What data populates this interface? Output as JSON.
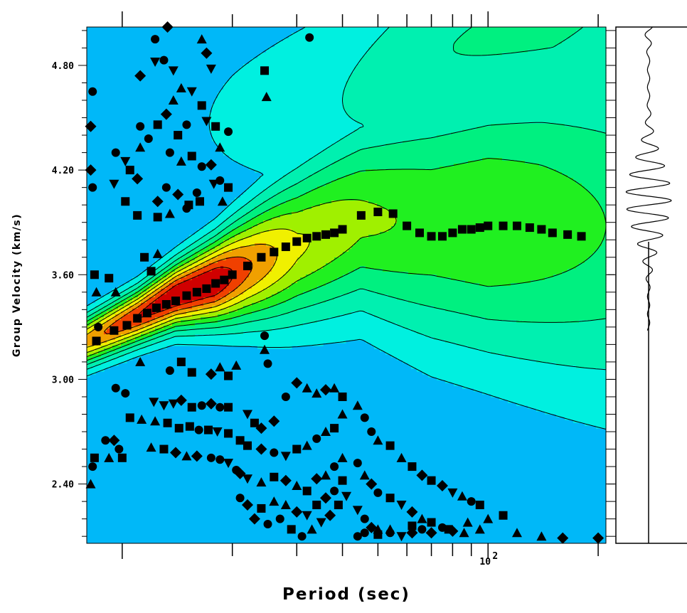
{
  "chart_data": {
    "type": "heatmap",
    "xlabel": "Period (sec)",
    "ylabel": "Group Velocity (km/s)",
    "x_scale": "log",
    "xlim": [
      8,
      210
    ],
    "ylim": [
      2.06,
      5.02
    ],
    "x_tick_labels": [
      {
        "value": 100,
        "base": "10",
        "exponent": "2"
      }
    ],
    "x_minor_ticks": [
      10,
      20,
      30,
      40,
      50,
      60,
      70,
      80,
      90,
      100,
      200
    ],
    "y_tick_labels": [
      "2.40",
      "3.00",
      "3.60",
      "4.20",
      "4.80"
    ],
    "y_ticks": [
      2.4,
      3.0,
      3.6,
      4.2,
      4.8
    ],
    "colormap": [
      "#00b8f8",
      "#00f0e0",
      "#00f0b0",
      "#00f080",
      "#20f020",
      "#a0f000",
      "#f0f000",
      "#f0a000",
      "#f04000",
      "#d00000"
    ],
    "background_color": "#00b8f8",
    "energy_ridges": [
      {
        "period": [
          8,
          11,
          14,
          18,
          22,
          30,
          45,
          70,
          100,
          140,
          210
        ],
        "velocity": [
          3.22,
          3.36,
          3.48,
          3.56,
          3.64,
          3.76,
          3.92,
          3.9,
          3.9,
          3.9,
          3.88
        ],
        "sigma": [
          0.1,
          0.11,
          0.13,
          0.17,
          0.22,
          0.3,
          0.38,
          0.5,
          0.55,
          0.62,
          0.7
        ],
        "amplitude": [
          0.75,
          0.9,
          1.0,
          1.0,
          0.82,
          0.62,
          0.52,
          0.48,
          0.5,
          0.46,
          0.4
        ]
      },
      {
        "period": [
          8,
          12,
          20,
          40,
          80,
          150,
          210
        ],
        "velocity": [
          4.3,
          4.4,
          4.5,
          4.6,
          4.9,
          5.1,
          5.2
        ],
        "sigma": [
          0.3,
          0.35,
          0.4,
          0.45,
          0.5,
          0.55,
          0.6
        ],
        "amplitude": [
          0.0,
          0.05,
          0.12,
          0.2,
          0.3,
          0.32,
          0.3
        ]
      }
    ],
    "contour_levels": [
      0.1,
      0.2,
      0.3,
      0.4,
      0.5,
      0.6,
      0.7,
      0.8,
      0.9
    ],
    "dispersion_picks": {
      "marker": "square",
      "period": [
        9.5,
        10.3,
        11,
        11.7,
        12.4,
        13.2,
        14,
        15,
        16,
        17,
        18,
        19,
        20,
        22,
        24,
        26,
        28,
        30,
        32,
        34,
        36,
        38,
        40,
        45,
        50,
        55,
        60,
        65,
        70,
        75,
        80,
        85,
        90,
        95,
        100,
        110,
        120,
        130,
        140,
        150,
        165,
        180
      ],
      "velocity": [
        3.28,
        3.31,
        3.35,
        3.38,
        3.41,
        3.43,
        3.45,
        3.48,
        3.5,
        3.52,
        3.55,
        3.57,
        3.6,
        3.65,
        3.7,
        3.73,
        3.76,
        3.79,
        3.81,
        3.82,
        3.83,
        3.84,
        3.86,
        3.94,
        3.96,
        3.95,
        3.88,
        3.84,
        3.82,
        3.82,
        3.84,
        3.86,
        3.86,
        3.87,
        3.88,
        3.88,
        3.88,
        3.87,
        3.86,
        3.84,
        3.83,
        3.82
      ]
    },
    "scatter_markers": {
      "shapes": [
        "circle",
        "square",
        "triangle",
        "triangle-down",
        "diamond"
      ],
      "points": [
        [
          8.3,
          4.65,
          0
        ],
        [
          8.2,
          4.45,
          4
        ],
        [
          8.2,
          4.2,
          4
        ],
        [
          8.3,
          4.1,
          0
        ],
        [
          8.4,
          3.6,
          1
        ],
        [
          8.5,
          3.5,
          2
        ],
        [
          8.6,
          3.3,
          0
        ],
        [
          8.5,
          3.22,
          1
        ],
        [
          8.3,
          2.5,
          0
        ],
        [
          8.4,
          2.55,
          1
        ],
        [
          8.2,
          2.4,
          2
        ],
        [
          9.2,
          3.58,
          1
        ],
        [
          9.6,
          3.5,
          2
        ],
        [
          9.2,
          2.55,
          2
        ],
        [
          9.5,
          2.65,
          4
        ],
        [
          9.8,
          2.6,
          0
        ],
        [
          10.0,
          2.55,
          1
        ],
        [
          9.0,
          2.65,
          0
        ],
        [
          9.6,
          4.3,
          0
        ],
        [
          10.2,
          4.25,
          3
        ],
        [
          11.2,
          4.33,
          2
        ],
        [
          10.5,
          4.2,
          1
        ],
        [
          11,
          4.15,
          4
        ],
        [
          9.5,
          4.12,
          3
        ],
        [
          10.2,
          4.02,
          1
        ],
        [
          11.8,
          4.38,
          0
        ],
        [
          11.2,
          4.45,
          0
        ],
        [
          12.5,
          4.46,
          1
        ],
        [
          13.2,
          4.52,
          4
        ],
        [
          13.8,
          4.6,
          2
        ],
        [
          14.2,
          4.4,
          1
        ],
        [
          15,
          4.46,
          0
        ],
        [
          11.2,
          4.74,
          4
        ],
        [
          12.3,
          4.82,
          3
        ],
        [
          13,
          4.83,
          0
        ],
        [
          13.8,
          4.77,
          3
        ],
        [
          14.5,
          4.67,
          2
        ],
        [
          15.5,
          4.65,
          3
        ],
        [
          12.3,
          4.95,
          0
        ],
        [
          13.3,
          5.02,
          4
        ],
        [
          15.8,
          5.03,
          3
        ],
        [
          16.5,
          4.95,
          2
        ],
        [
          17,
          4.87,
          4
        ],
        [
          17.5,
          4.78,
          3
        ],
        [
          16.5,
          4.57,
          1
        ],
        [
          17,
          4.48,
          3
        ],
        [
          18,
          4.45,
          1
        ],
        [
          18.5,
          4.33,
          2
        ],
        [
          19.5,
          4.42,
          0
        ],
        [
          13.5,
          4.3,
          0
        ],
        [
          14.5,
          4.25,
          2
        ],
        [
          15.5,
          4.28,
          1
        ],
        [
          16.5,
          4.22,
          0
        ],
        [
          17.5,
          4.23,
          4
        ],
        [
          18.5,
          4.14,
          0
        ],
        [
          19.5,
          4.1,
          1
        ],
        [
          12.5,
          4.02,
          4
        ],
        [
          13.2,
          4.1,
          0
        ],
        [
          14.2,
          4.06,
          4
        ],
        [
          15.2,
          4.0,
          1
        ],
        [
          16.3,
          4.02,
          1
        ],
        [
          17.8,
          4.12,
          3
        ],
        [
          18.8,
          4.02,
          2
        ],
        [
          11,
          3.94,
          1
        ],
        [
          12.5,
          3.93,
          1
        ],
        [
          13.5,
          3.95,
          2
        ],
        [
          15,
          3.98,
          0
        ],
        [
          16,
          4.07,
          0
        ],
        [
          11.5,
          3.7,
          1
        ],
        [
          12.5,
          3.72,
          2
        ],
        [
          12,
          3.62,
          1
        ],
        [
          24.5,
          4.77,
          1
        ],
        [
          24.8,
          4.62,
          2
        ],
        [
          32.5,
          4.96,
          0
        ],
        [
          11.2,
          3.1,
          2
        ],
        [
          13.5,
          3.05,
          0
        ],
        [
          14.5,
          3.1,
          1
        ],
        [
          15.5,
          3.04,
          1
        ],
        [
          17.5,
          3.03,
          4
        ],
        [
          18.5,
          3.07,
          2
        ],
        [
          19.5,
          3.02,
          1
        ],
        [
          24.5,
          3.17,
          2
        ],
        [
          25,
          3.09,
          0
        ],
        [
          24.5,
          3.25,
          0
        ],
        [
          20.5,
          3.08,
          2
        ],
        [
          9.6,
          2.95,
          0
        ],
        [
          10.2,
          2.92,
          0
        ],
        [
          12.2,
          2.87,
          3
        ],
        [
          13,
          2.85,
          3
        ],
        [
          13.8,
          2.86,
          3
        ],
        [
          14.5,
          2.88,
          4
        ],
        [
          15.5,
          2.84,
          1
        ],
        [
          16.5,
          2.85,
          0
        ],
        [
          17.5,
          2.86,
          4
        ],
        [
          18.5,
          2.84,
          0
        ],
        [
          19.5,
          2.84,
          1
        ],
        [
          10.5,
          2.78,
          1
        ],
        [
          11.3,
          2.77,
          2
        ],
        [
          12.3,
          2.76,
          2
        ],
        [
          13.3,
          2.75,
          1
        ],
        [
          14.3,
          2.72,
          1
        ],
        [
          15.3,
          2.73,
          1
        ],
        [
          16.2,
          2.71,
          0
        ],
        [
          17.2,
          2.71,
          1
        ],
        [
          18.2,
          2.7,
          3
        ],
        [
          19.5,
          2.69,
          1
        ],
        [
          12,
          2.61,
          2
        ],
        [
          13,
          2.6,
          1
        ],
        [
          14,
          2.58,
          4
        ],
        [
          15,
          2.56,
          2
        ],
        [
          16,
          2.56,
          4
        ],
        [
          17.5,
          2.55,
          0
        ],
        [
          18.5,
          2.54,
          0
        ],
        [
          19.5,
          2.52,
          3
        ],
        [
          20.5,
          2.48,
          0
        ],
        [
          22,
          2.8,
          3
        ],
        [
          23,
          2.75,
          1
        ],
        [
          24,
          2.72,
          4
        ],
        [
          26,
          2.76,
          4
        ],
        [
          28,
          2.9,
          0
        ],
        [
          30,
          2.98,
          4
        ],
        [
          32,
          2.95,
          2
        ],
        [
          34,
          2.92,
          2
        ],
        [
          36,
          2.94,
          4
        ],
        [
          38,
          2.95,
          2
        ],
        [
          40,
          2.9,
          1
        ],
        [
          21,
          2.65,
          1
        ],
        [
          22,
          2.62,
          1
        ],
        [
          24,
          2.6,
          4
        ],
        [
          26,
          2.58,
          0
        ],
        [
          28,
          2.56,
          3
        ],
        [
          30,
          2.6,
          1
        ],
        [
          32,
          2.62,
          2
        ],
        [
          34,
          2.66,
          0
        ],
        [
          36,
          2.7,
          2
        ],
        [
          38,
          2.72,
          1
        ],
        [
          40,
          2.8,
          2
        ],
        [
          21,
          2.46,
          4
        ],
        [
          22,
          2.43,
          3
        ],
        [
          24,
          2.41,
          2
        ],
        [
          26,
          2.44,
          1
        ],
        [
          28,
          2.42,
          4
        ],
        [
          30,
          2.39,
          2
        ],
        [
          32,
          2.36,
          1
        ],
        [
          34,
          2.43,
          4
        ],
        [
          36,
          2.45,
          2
        ],
        [
          38,
          2.5,
          0
        ],
        [
          40,
          2.55,
          2
        ],
        [
          21,
          2.32,
          0
        ],
        [
          22,
          2.28,
          4
        ],
        [
          24,
          2.26,
          1
        ],
        [
          26,
          2.3,
          2
        ],
        [
          28,
          2.28,
          2
        ],
        [
          30,
          2.24,
          4
        ],
        [
          32,
          2.22,
          3
        ],
        [
          34,
          2.28,
          1
        ],
        [
          36,
          2.32,
          4
        ],
        [
          38,
          2.36,
          0
        ],
        [
          40,
          2.42,
          1
        ],
        [
          23,
          2.2,
          4
        ],
        [
          25,
          2.17,
          0
        ],
        [
          27,
          2.2,
          0
        ],
        [
          29,
          2.14,
          1
        ],
        [
          31,
          2.1,
          0
        ],
        [
          33,
          2.14,
          2
        ],
        [
          35,
          2.18,
          3
        ],
        [
          37,
          2.22,
          4
        ],
        [
          39,
          2.28,
          1
        ],
        [
          41,
          2.33,
          3
        ],
        [
          44,
          2.85,
          2
        ],
        [
          46,
          2.78,
          0
        ],
        [
          48,
          2.7,
          0
        ],
        [
          50,
          2.65,
          2
        ],
        [
          54,
          2.62,
          1
        ],
        [
          58,
          2.55,
          2
        ],
        [
          62,
          2.5,
          1
        ],
        [
          66,
          2.45,
          4
        ],
        [
          70,
          2.42,
          1
        ],
        [
          75,
          2.39,
          4
        ],
        [
          80,
          2.35,
          3
        ],
        [
          85,
          2.33,
          2
        ],
        [
          90,
          2.3,
          0
        ],
        [
          95,
          2.28,
          1
        ],
        [
          44,
          2.52,
          0
        ],
        [
          46,
          2.45,
          2
        ],
        [
          48,
          2.4,
          4
        ],
        [
          50,
          2.35,
          0
        ],
        [
          54,
          2.32,
          1
        ],
        [
          58,
          2.28,
          3
        ],
        [
          62,
          2.24,
          4
        ],
        [
          66,
          2.2,
          2
        ],
        [
          70,
          2.18,
          1
        ],
        [
          75,
          2.15,
          0
        ],
        [
          80,
          2.13,
          4
        ],
        [
          88,
          2.18,
          2
        ],
        [
          95,
          2.14,
          2
        ],
        [
          110,
          2.22,
          1
        ],
        [
          44,
          2.25,
          3
        ],
        [
          46,
          2.2,
          0
        ],
        [
          48,
          2.15,
          4
        ],
        [
          50,
          2.14,
          2
        ],
        [
          54,
          2.12,
          0
        ],
        [
          58,
          2.1,
          3
        ],
        [
          62,
          2.12,
          4
        ],
        [
          66,
          2.14,
          0
        ],
        [
          70,
          2.12,
          4
        ],
        [
          78,
          2.14,
          1
        ],
        [
          86,
          2.12,
          2
        ],
        [
          100,
          2.2,
          2
        ],
        [
          44,
          2.1,
          0
        ],
        [
          46,
          2.12,
          0
        ],
        [
          50,
          2.11,
          1
        ],
        [
          54,
          2.14,
          2
        ],
        [
          62,
          2.16,
          1
        ],
        [
          120,
          2.12,
          2
        ],
        [
          140,
          2.1,
          2
        ],
        [
          160,
          2.09,
          4
        ],
        [
          200,
          2.09,
          4
        ]
      ]
    },
    "seismogram": {
      "envelope_center_velocity": 4.04,
      "envelope_halfwidth_velocity": 0.22,
      "oscillation_period": 0.1,
      "peak_amplitude": 1.0,
      "precursor_amplitude": 0.18,
      "coda_amplitude": 0.05,
      "quiet_below_velocity": 3.28
    }
  }
}
